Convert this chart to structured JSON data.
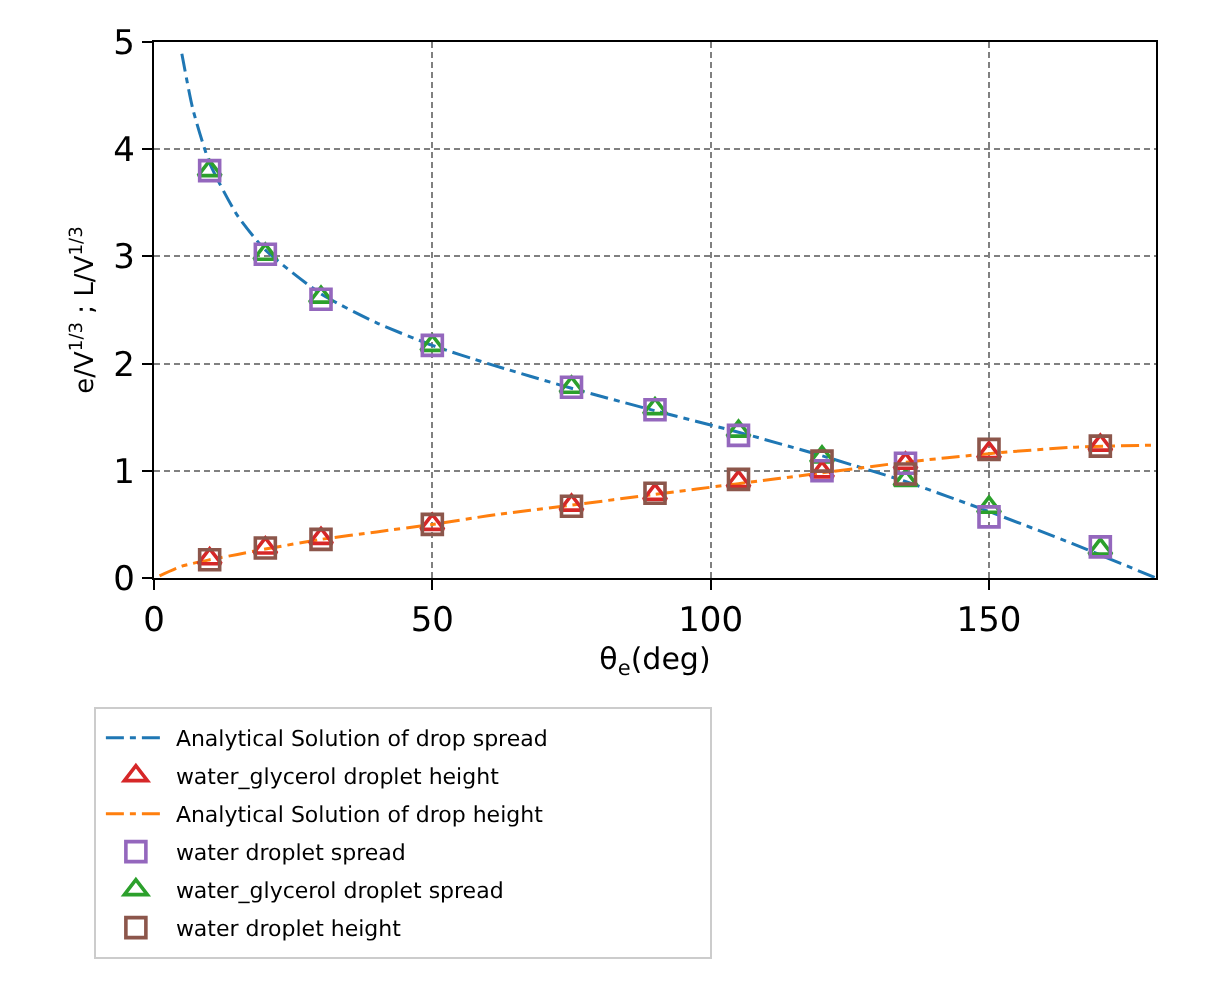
{
  "chart_data": {
    "type": "scatter",
    "xlabel": "θ$_{e}$(deg)",
    "ylabel": "e/V$^{1/3}$ ; L/V$^{1/3}$",
    "xlim": [
      0,
      180
    ],
    "xticks": [
      0,
      50,
      100,
      150
    ],
    "ylim": [
      0,
      5
    ],
    "yticks": [
      0,
      1,
      2,
      3,
      4,
      5
    ],
    "grid": true,
    "legend": "bottom",
    "series": [
      {
        "name": "Analytical Solution of drop spread",
        "type": "line",
        "color": "#1f77b4",
        "line_style": "dashdot",
        "marker": "none",
        "x": [
          5,
          7,
          10,
          15,
          20,
          30,
          40,
          50,
          60,
          75,
          90,
          105,
          120,
          135,
          150,
          165,
          180
        ],
        "values": [
          4.89,
          4.37,
          3.87,
          3.38,
          3.06,
          2.65,
          2.38,
          2.17,
          2.0,
          1.77,
          1.56,
          1.36,
          1.14,
          0.9,
          0.62,
          0.32,
          0.0
        ]
      },
      {
        "name": "Analytical Solution of drop height",
        "type": "line",
        "color": "#ff7f0e",
        "line_style": "dashdot",
        "marker": "none",
        "x": [
          1,
          5,
          10,
          15,
          20,
          30,
          40,
          50,
          60,
          75,
          90,
          105,
          120,
          135,
          150,
          165,
          180
        ],
        "values": [
          0.02,
          0.11,
          0.17,
          0.22,
          0.27,
          0.36,
          0.43,
          0.5,
          0.58,
          0.68,
          0.78,
          0.88,
          0.98,
          1.08,
          1.16,
          1.22,
          1.24
        ]
      },
      {
        "name": "water_glycerol droplet spread",
        "color": "#2ca02c",
        "marker": "triangle",
        "x": [
          10,
          20,
          30,
          50,
          75,
          90,
          105,
          120,
          135,
          150,
          170
        ],
        "values": [
          3.8,
          3.02,
          2.62,
          2.17,
          1.78,
          1.58,
          1.37,
          1.13,
          0.91,
          0.66,
          0.27
        ]
      },
      {
        "name": "water_glycerol droplet height",
        "color": "#d62728",
        "marker": "triangle",
        "x": [
          10,
          20,
          30,
          50,
          75,
          90,
          105,
          120,
          135,
          150,
          170
        ],
        "values": [
          0.18,
          0.28,
          0.37,
          0.5,
          0.68,
          0.78,
          0.9,
          0.99,
          1.07,
          1.17,
          1.24
        ]
      },
      {
        "name": "water droplet spread",
        "color": "#9467bd",
        "marker": "square",
        "x": [
          10,
          20,
          30,
          50,
          75,
          90,
          105,
          120,
          135,
          150,
          170
        ],
        "values": [
          3.8,
          3.02,
          2.6,
          2.17,
          1.78,
          1.57,
          1.33,
          1.0,
          1.07,
          0.57,
          0.29
        ]
      },
      {
        "name": "water droplet height",
        "color": "#8c564b",
        "marker": "square",
        "x": [
          10,
          20,
          30,
          50,
          75,
          90,
          105,
          120,
          135,
          150,
          170
        ],
        "values": [
          0.17,
          0.28,
          0.36,
          0.5,
          0.67,
          0.79,
          0.92,
          1.09,
          0.97,
          1.2,
          1.23
        ]
      }
    ]
  }
}
